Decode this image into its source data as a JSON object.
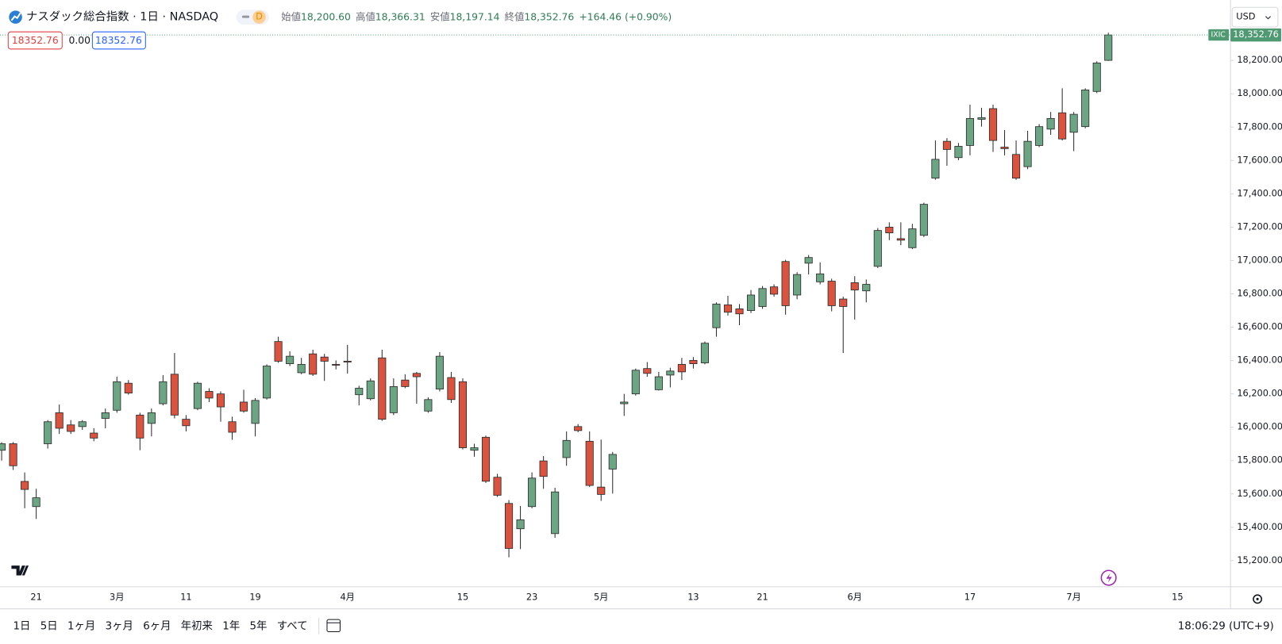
{
  "header": {
    "title": "ナスダック総合指数 · 1日 · NASDAQ",
    "interval_badge": "D",
    "ohlc": [
      {
        "label": "始値",
        "value": "18,200.60"
      },
      {
        "label": "高値",
        "value": "18,366.31"
      },
      {
        "label": "安値",
        "value": "18,197.14"
      },
      {
        "label": "終値",
        "value": "18,352.76"
      }
    ],
    "change": "+164.46 (+0.90%)"
  },
  "legend_boxes": [
    "18352.76",
    "0.00",
    "18352.76"
  ],
  "currency": "USD",
  "price_tag": {
    "symbol": "IXIC",
    "price": "18,352.76"
  },
  "range_buttons": [
    "1日",
    "5日",
    "1ヶ月",
    "3ヶ月",
    "6ヶ月",
    "年初来",
    "1年",
    "5年",
    "すべて"
  ],
  "clock": "18:06:29 (UTC+9)",
  "chart_data": {
    "type": "candlestick",
    "up_color": "#6ba584",
    "down_color": "#d9533f",
    "grid": false,
    "categories": [
      null,
      null,
      null,
      "21",
      null,
      null,
      null,
      null,
      null,
      null,
      "3月",
      null,
      null,
      null,
      null,
      null,
      "11",
      null,
      null,
      null,
      null,
      null,
      "19",
      null,
      null,
      null,
      null,
      null,
      null,
      null,
      "4月",
      null,
      null,
      null,
      null,
      null,
      null,
      null,
      null,
      null,
      "15",
      null,
      null,
      null,
      null,
      null,
      "23",
      null,
      null,
      null,
      null,
      null,
      "5月",
      null,
      null,
      null,
      null,
      null,
      null,
      null,
      "13",
      null,
      null,
      null,
      null,
      null,
      "21",
      null,
      null,
      null,
      null,
      null,
      null,
      null,
      "6月",
      null,
      null,
      null,
      null,
      null,
      null,
      null,
      null,
      null,
      "17",
      null,
      null,
      null,
      null,
      null,
      null,
      null,
      null,
      "7月",
      null,
      null,
      null,
      null,
      null,
      null,
      null,
      null,
      "15"
    ],
    "open": [
      15862,
      15901,
      15675,
      15524,
      15901,
      16087,
      16014,
      16004,
      15965,
      16053,
      16102,
      16264,
      16073,
      16023,
      16141,
      16318,
      16048,
      16112,
      16215,
      16200,
      16033,
      16151,
      16023,
      16175,
      16514,
      16381,
      16327,
      16440,
      16421,
      16377,
      16396,
      16195,
      16171,
      16416,
      16087,
      16283,
      16323,
      16097,
      16229,
      16298,
      16273,
      15862,
      15940,
      15700,
      15543,
      15391,
      15524,
      15798,
      15362,
      15818,
      16004,
      15916,
      15641,
      15749,
      16141,
      16200,
      16352,
      16225,
      16313,
      16377,
      16401,
      16386,
      16597,
      16734,
      16710,
      16700,
      16724,
      16842,
      16994,
      16793,
      16984,
      16872,
      16876,
      16769,
      16867,
      16818,
      16965,
      17200,
      17131,
      17077,
      17151,
      17494,
      17715,
      17617,
      17690,
      17847,
      17911,
      17680,
      17636,
      17563,
      17690,
      17788,
      17886,
      17769,
      17803,
      18014,
      18200.6,
      null,
      null,
      null,
      null,
      null,
      null
    ],
    "high": [
      15910,
      15911,
      15729,
      15631,
      16043,
      16136,
      16043,
      16043,
      15994,
      16112,
      16303,
      16283,
      16087,
      16112,
      16313,
      16445,
      16073,
      16273,
      16234,
      16215,
      16063,
      16225,
      16175,
      16377,
      16543,
      16455,
      16416,
      16465,
      16440,
      16401,
      16494,
      16249,
      16293,
      16465,
      16293,
      16318,
      16332,
      16180,
      16450,
      16332,
      16293,
      15901,
      15950,
      15720,
      15563,
      15528,
      15729,
      15827,
      15637,
      15975,
      16019,
      15975,
      15926,
      15852,
      16200,
      16352,
      16391,
      16332,
      16357,
      16416,
      16421,
      16514,
      16749,
      16788,
      16739,
      16823,
      16847,
      16857,
      17004,
      16930,
      17033,
      16989,
      16891,
      16783,
      16906,
      16886,
      17195,
      17229,
      17229,
      17220,
      17347,
      17720,
      17734,
      17705,
      17935,
      17916,
      17935,
      17783,
      17720,
      17778,
      17818,
      17891,
      18033,
      17891,
      18033,
      18195,
      18366.31,
      null,
      null,
      null,
      null,
      null,
      null
    ],
    "low": [
      15800,
      15744,
      15514,
      15450,
      15872,
      15960,
      15960,
      15984,
      15916,
      15994,
      16087,
      16195,
      15862,
      15945,
      16131,
      16053,
      15975,
      16102,
      16151,
      16033,
      15925,
      16087,
      15945,
      16166,
      16386,
      16367,
      16318,
      16308,
      16278,
      16347,
      16322,
      16131,
      16161,
      16038,
      16073,
      16234,
      16141,
      16087,
      16215,
      16146,
      15867,
      15823,
      15666,
      15582,
      15220,
      15269,
      15514,
      15631,
      15337,
      15769,
      15970,
      15641,
      15558,
      15602,
      16068,
      16190,
      16303,
      16220,
      16239,
      16283,
      16352,
      16377,
      16543,
      16670,
      16612,
      16685,
      16710,
      16783,
      16675,
      16768,
      16916,
      16857,
      16695,
      16445,
      16646,
      16749,
      16955,
      17122,
      17092,
      17068,
      17141,
      17484,
      17568,
      17602,
      17631,
      17803,
      17651,
      17631,
      17484,
      17548,
      17680,
      17754,
      17720,
      17656,
      17793,
      18004,
      18197.14,
      null,
      null,
      null,
      null,
      null,
      null
    ],
    "close": [
      15901,
      15769,
      15627,
      15577,
      16033,
      15994,
      15975,
      16033,
      15935,
      16087,
      16273,
      16205,
      15935,
      16087,
      16273,
      16073,
      16009,
      16264,
      16175,
      16122,
      15970,
      16097,
      16161,
      16367,
      16396,
      16426,
      16377,
      16318,
      16396,
      16372,
      16391,
      16234,
      16278,
      16048,
      16244,
      16244,
      16303,
      16166,
      16426,
      16166,
      15877,
      15877,
      15676,
      15592,
      15273,
      15445,
      15695,
      15705,
      15612,
      15921,
      15980,
      15651,
      15597,
      15837,
      16151,
      16342,
      16323,
      16303,
      16337,
      16332,
      16381,
      16504,
      16739,
      16690,
      16680,
      16793,
      16832,
      16798,
      16729,
      16916,
      17018,
      16920,
      16729,
      16724,
      16823,
      16857,
      17180,
      17166,
      17122,
      17190,
      17337,
      17607,
      17666,
      17685,
      17852,
      17857,
      17720,
      17671,
      17494,
      17715,
      17803,
      17852,
      17729,
      17877,
      18023,
      18185,
      18352.76,
      null,
      null,
      null,
      null,
      null,
      null
    ],
    "ylim": [
      15043,
      18538
    ],
    "yticks": [
      {
        "value": 15200,
        "label": "15,200.00"
      },
      {
        "value": 15400,
        "label": "15,400.00"
      },
      {
        "value": 15600,
        "label": "15,600.00"
      },
      {
        "value": 15800,
        "label": "15,800.00"
      },
      {
        "value": 16000,
        "label": "16,000.00"
      },
      {
        "value": 16200,
        "label": "16,200.00"
      },
      {
        "value": 16400,
        "label": "16,400.00"
      },
      {
        "value": 16600,
        "label": "16,600.00"
      },
      {
        "value": 16800,
        "label": "16,800.00"
      },
      {
        "value": 17000,
        "label": "17,000.00"
      },
      {
        "value": 17200,
        "label": "17,200.00"
      },
      {
        "value": 17400,
        "label": "17,400.00"
      },
      {
        "value": 17600,
        "label": "17,600.00"
      },
      {
        "value": 17800,
        "label": "17,800.00"
      },
      {
        "value": 18000,
        "label": "18,000.00"
      },
      {
        "value": 18200,
        "label": "18,200.00"
      }
    ]
  }
}
